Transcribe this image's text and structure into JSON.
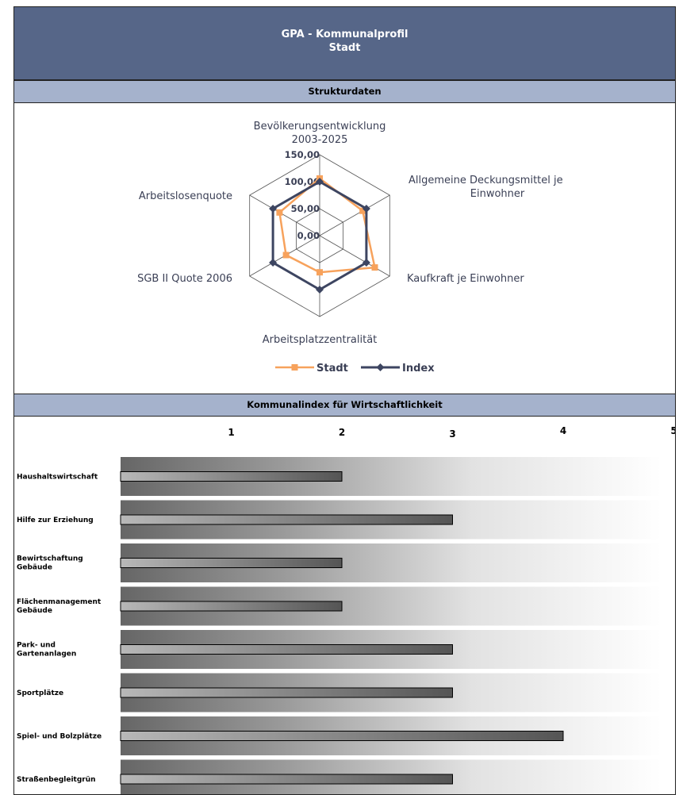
{
  "header": {
    "title": "GPA - Kommunalprofil",
    "subtitle": "Stadt"
  },
  "section1": {
    "title": "Strukturdaten"
  },
  "section2": {
    "title": "Kommunalindex für Wirtschaftlichkeit"
  },
  "colors": {
    "header_bg": "#566688",
    "band_bg": "#a5b2cc",
    "stadt": "#f7a25c",
    "index": "#3d4561"
  },
  "chart_data": [
    {
      "type": "radar",
      "axes": [
        [
          "Bevölkerungsentwicklung",
          "2003-2025"
        ],
        [
          "Allgemeine Deckungsmittel je",
          "Einwohner"
        ],
        [
          "Kaufkraft je Einwohner"
        ],
        [
          "Arbeitsplatzzentralität"
        ],
        [
          "SGB II Quote 2006"
        ],
        [
          "Arbeitslosenquote"
        ]
      ],
      "ticks": [
        "150,00",
        "100,00",
        "50,00",
        "0,00"
      ],
      "range": [
        0,
        150
      ],
      "series": [
        {
          "name": "Stadt",
          "values": [
            106,
            92,
            118,
            68,
            72,
            86
          ]
        },
        {
          "name": "Index",
          "values": [
            100,
            100,
            100,
            100,
            100,
            100
          ]
        }
      ],
      "legend": "bottom"
    },
    {
      "type": "bar",
      "orientation": "horizontal",
      "scale_labels": [
        "1",
        "2",
        "3",
        "4",
        "5"
      ],
      "xlim": [
        0,
        5
      ],
      "categories": [
        [
          "Haushaltswirtschaft"
        ],
        [
          "Hilfe zur Erziehung"
        ],
        [
          "Bewirtschaftung",
          "Gebäude"
        ],
        [
          "Flächenmanagement",
          "Gebäude"
        ],
        [
          "Park- und",
          "Gartenanlagen"
        ],
        [
          "Sportplätze"
        ],
        [
          "Spiel- und Bolzplätze"
        ],
        [
          "Straßenbegleitgrün"
        ]
      ],
      "values": [
        2,
        3,
        2,
        2,
        3,
        3,
        4,
        3
      ]
    }
  ]
}
